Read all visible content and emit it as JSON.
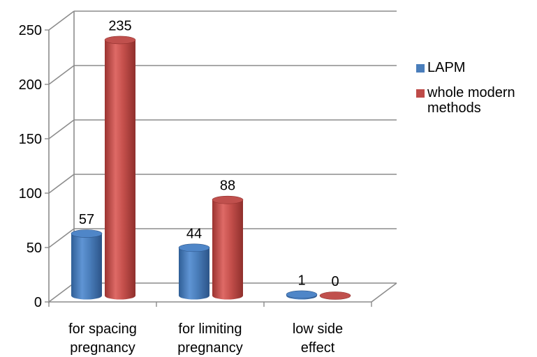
{
  "chart_data": {
    "type": "bar",
    "categories": [
      "for spacing pregnancy",
      "for limiting pregnancy",
      "low side effect"
    ],
    "category_lines": [
      [
        "for spacing",
        "pregnancy"
      ],
      [
        "for limiting",
        "pregnancy"
      ],
      [
        "low side",
        "effect"
      ]
    ],
    "series": [
      {
        "name": "LAPM",
        "values": [
          57,
          44,
          1
        ],
        "color": "#4a7ebb"
      },
      {
        "name": "whole modern methods",
        "values": [
          235,
          88,
          0
        ],
        "color": "#be4b48"
      }
    ],
    "y_ticks": [
      0,
      50,
      100,
      150,
      200,
      250
    ],
    "ylim": [
      0,
      250
    ],
    "grid": true,
    "style": "3d-cylinder",
    "legend_position": "right"
  },
  "legend": [
    {
      "label": "LAPM",
      "color": "#4a7ebb"
    },
    {
      "label": "whole modern methods",
      "color": "#be4b48"
    }
  ]
}
